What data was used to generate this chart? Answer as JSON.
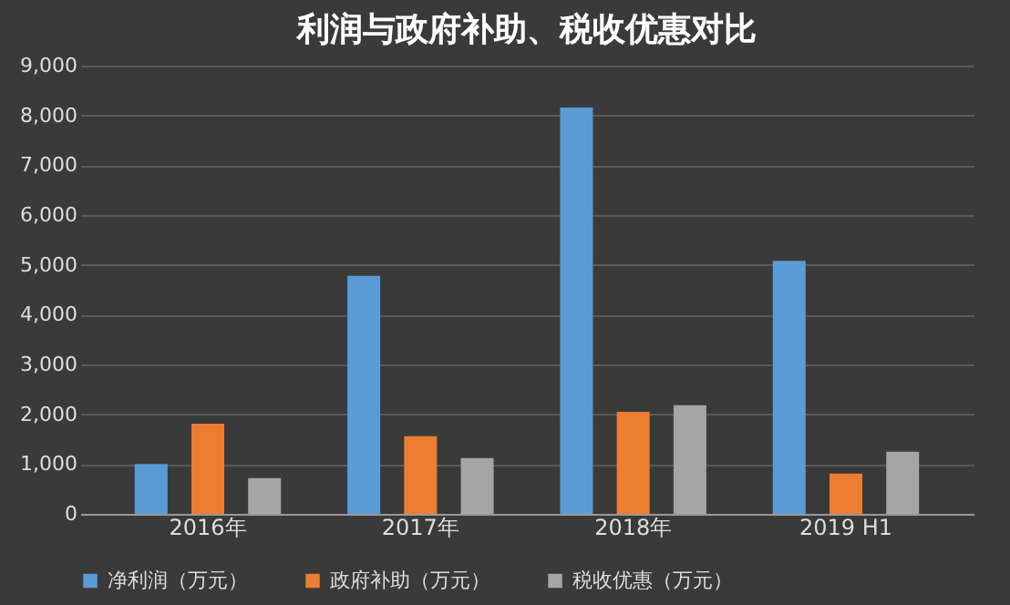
{
  "chart_data": {
    "type": "bar",
    "title": "利润与政府补助、税收优惠对比",
    "categories": [
      "2016年",
      "2017年",
      "2018年",
      "2019 H1"
    ],
    "series": [
      {
        "name": "净利润（万元）",
        "color": "#5b9bd5",
        "values": [
          1000,
          4780,
          8160,
          5080
        ]
      },
      {
        "name": "政府补助（万元）",
        "color": "#ed7d31",
        "values": [
          1810,
          1560,
          2050,
          810
        ]
      },
      {
        "name": "税收优惠（万元）",
        "color": "#a5a5a5",
        "values": [
          720,
          1120,
          2180,
          1250
        ]
      }
    ],
    "ylim": [
      0,
      9000
    ],
    "yticks": [
      0,
      {
        "value": 1000,
        "label": "1,000"
      },
      {
        "value": 2000,
        "label": "2,000"
      },
      {
        "value": 3000,
        "label": "3,000"
      },
      {
        "value": 4000,
        "label": "4,000"
      },
      {
        "value": 5000,
        "label": "5,000"
      },
      {
        "value": 6000,
        "label": "6,000"
      },
      {
        "value": 7000,
        "label": "7,000"
      },
      {
        "value": 8000,
        "label": "8,000"
      },
      {
        "value": 9000,
        "label": "9,000"
      }
    ],
    "grid": "y",
    "legend": "bottom"
  }
}
